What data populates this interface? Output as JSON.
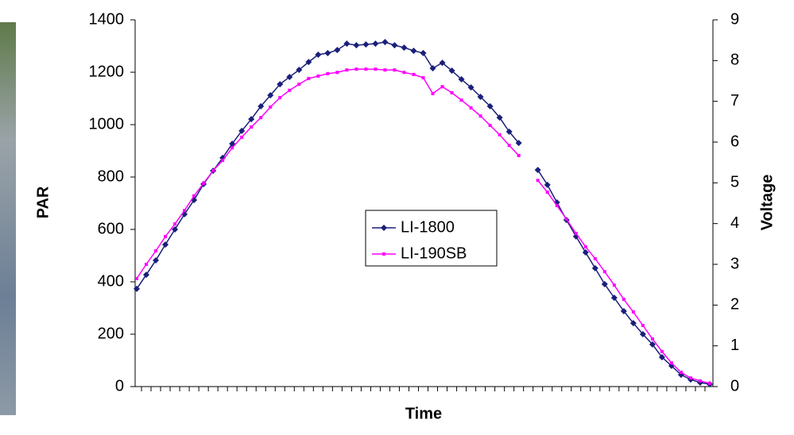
{
  "chart_data": {
    "type": "line",
    "categories": [
      null,
      null,
      null,
      null,
      null,
      null,
      null,
      null,
      null,
      null,
      null,
      null,
      null,
      null,
      null,
      null,
      null,
      null,
      null,
      null,
      null,
      null,
      null,
      null,
      null,
      null,
      null,
      null,
      null,
      null,
      null,
      null,
      null,
      null,
      null,
      null,
      null,
      null,
      null,
      null,
      null,
      null,
      null,
      null,
      null,
      null,
      null,
      null,
      null,
      null,
      null,
      null,
      null,
      null,
      null,
      null,
      null,
      null,
      null,
      null,
      null
    ],
    "x_label": "Time",
    "y_label": "PAR",
    "y2_label": "Voltage",
    "ylim": [
      0,
      1400
    ],
    "yticks": [
      0,
      200,
      400,
      600,
      800,
      1000,
      1200,
      1400
    ],
    "y2lim": [
      0,
      9
    ],
    "y2ticks": [
      0,
      1,
      2,
      3,
      4,
      5,
      6,
      7,
      8,
      9
    ],
    "legend": "center",
    "series": [
      {
        "name": "LI-1800",
        "color": "#1a1f7a",
        "marker": "diamond",
        "values": [
          373,
          427,
          482,
          542,
          600,
          658,
          712,
          773,
          824,
          873,
          927,
          976,
          1021,
          1070,
          1112,
          1154,
          1182,
          1209,
          1239,
          1267,
          1273,
          1285,
          1309,
          1303,
          1306,
          1309,
          1315,
          1303,
          1294,
          1282,
          1273,
          1215,
          1236,
          1206,
          1173,
          1142,
          1106,
          1070,
          1027,
          973,
          930,
          null,
          827,
          770,
          703,
          636,
          573,
          512,
          452,
          391,
          339,
          288,
          242,
          200,
          161,
          112,
          79,
          45,
          27,
          15,
          9
        ]
      },
      {
        "name": "LI-190SB",
        "color": "#ff00ff",
        "marker": "square",
        "axis": "y2",
        "values": [
          2.65,
          3.0,
          3.33,
          3.68,
          3.99,
          4.32,
          4.68,
          4.99,
          5.3,
          5.55,
          5.86,
          6.12,
          6.37,
          6.6,
          6.86,
          7.09,
          7.27,
          7.42,
          7.56,
          7.62,
          7.68,
          7.71,
          7.77,
          7.79,
          7.79,
          7.79,
          7.77,
          7.77,
          7.71,
          7.66,
          7.58,
          7.19,
          7.36,
          7.21,
          7.03,
          6.84,
          6.64,
          6.41,
          6.18,
          5.92,
          5.67,
          null,
          5.06,
          4.77,
          4.44,
          4.11,
          3.76,
          3.43,
          3.14,
          2.82,
          2.49,
          2.14,
          1.83,
          1.5,
          1.17,
          0.86,
          0.58,
          0.35,
          0.21,
          0.14,
          0.08
        ]
      }
    ]
  }
}
